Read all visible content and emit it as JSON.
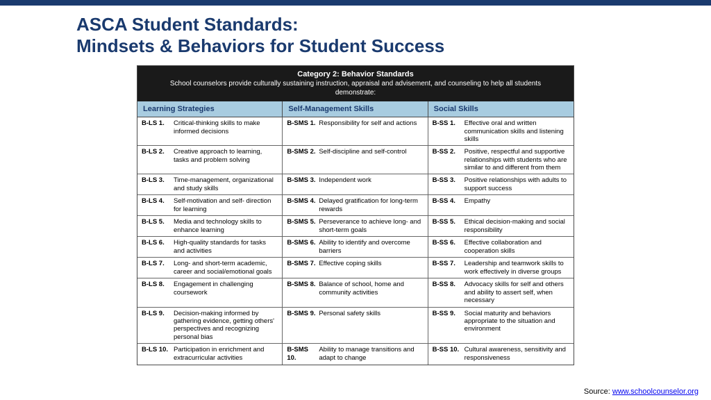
{
  "title_line1": "ASCA Student Standards:",
  "title_line2": "Mindsets & Behaviors for Student Success",
  "category_header": "Category 2: Behavior Standards",
  "category_sub": "School counselors provide culturally sustaining instruction, appraisal and advisement, and counseling to help all students demonstrate:",
  "columns": [
    "Learning Strategies",
    "Self-Management Skills",
    "Social Skills"
  ],
  "rows": [
    {
      "c1": {
        "code": "B-LS 1.",
        "desc": "Critical-thinking skills to make informed decisions"
      },
      "c2": {
        "code": "B-SMS 1.",
        "desc": "Responsibility for self and actions"
      },
      "c3": {
        "code": "B-SS 1.",
        "desc": "Effective oral and written communication skills and listening skills"
      }
    },
    {
      "c1": {
        "code": "B-LS 2.",
        "desc": "Creative approach to learning, tasks and problem solving"
      },
      "c2": {
        "code": "B-SMS 2.",
        "desc": "Self-discipline and self-control"
      },
      "c3": {
        "code": "B-SS 2.",
        "desc": "Positive, respectful and supportive relationships with students who are similar to and different from them"
      }
    },
    {
      "c1": {
        "code": "B-LS 3.",
        "desc": "Time-management, organizational and study skills"
      },
      "c2": {
        "code": "B-SMS 3.",
        "desc": "Independent work"
      },
      "c3": {
        "code": "B-SS 3.",
        "desc": "Positive relationships with adults to support success"
      }
    },
    {
      "c1": {
        "code": "B-LS 4.",
        "desc": "Self-motivation and self- direction for learning"
      },
      "c2": {
        "code": "B-SMS 4.",
        "desc": "Delayed gratification for long-term rewards"
      },
      "c3": {
        "code": "B-SS 4.",
        "desc": "Empathy"
      }
    },
    {
      "c1": {
        "code": "B-LS 5.",
        "desc": "Media and technology skills to enhance learning"
      },
      "c2": {
        "code": "B-SMS 5.",
        "desc": "Perseverance to achieve long- and short-term goals"
      },
      "c3": {
        "code": "B-SS 5.",
        "desc": "Ethical decision-making and social responsibility"
      }
    },
    {
      "c1": {
        "code": "B-LS 6.",
        "desc": "High-quality standards for tasks and activities"
      },
      "c2": {
        "code": "B-SMS 6.",
        "desc": "Ability to identify and overcome barriers"
      },
      "c3": {
        "code": "B-SS 6.",
        "desc": "Effective collaboration and cooperation skills"
      }
    },
    {
      "c1": {
        "code": "B-LS 7.",
        "desc": "Long- and short-term academic, career and social/emotional goals"
      },
      "c2": {
        "code": "B-SMS 7.",
        "desc": "Effective coping skills"
      },
      "c3": {
        "code": "B-SS 7.",
        "desc": "Leadership and teamwork skills to work effectively in diverse groups"
      }
    },
    {
      "c1": {
        "code": "B-LS 8.",
        "desc": "Engagement in challenging coursework"
      },
      "c2": {
        "code": "B-SMS 8.",
        "desc": "Balance of school, home and community activities"
      },
      "c3": {
        "code": "B-SS 8.",
        "desc": "Advocacy skills for self and others and ability to assert self, when necessary"
      }
    },
    {
      "c1": {
        "code": "B-LS 9.",
        "desc": "Decision-making informed by gathering evidence, getting others' perspectives and recognizing personal bias"
      },
      "c2": {
        "code": "B-SMS 9.",
        "desc": "Personal safety skills"
      },
      "c3": {
        "code": "B-SS 9.",
        "desc": "Social maturity and behaviors appropriate to the situation and environment"
      }
    },
    {
      "c1": {
        "code": "B-LS 10.",
        "desc": "Participation in enrichment and extracurricular activities"
      },
      "c2": {
        "code": "B-SMS 10.",
        "desc": "Ability to manage transitions and adapt to change"
      },
      "c3": {
        "code": "B-SS 10.",
        "desc": "Cultural awareness, sensitivity and responsiveness"
      }
    }
  ],
  "source_label": "Source:",
  "source_link_text": "www.schoolcounselor.org",
  "colors": {
    "brand": "#1a3a6e",
    "header_bg": "#1a1a1a",
    "subheader_bg": "#a8cce0",
    "border": "#4a4a4a"
  }
}
